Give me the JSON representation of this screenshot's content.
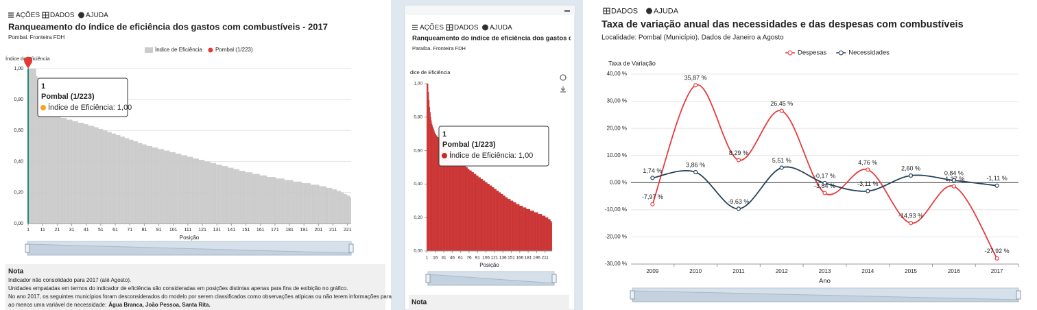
{
  "panels": [
    {
      "menu": [
        "AÇÕES",
        "DADOS",
        "AJUDA"
      ],
      "note": {
        "title": "Nota",
        "lines": [
          "Indicador não consolidado para 2017 (até Agosto).",
          "Unidades empatadas em termos do indicador de eficiência são consideradas em posições distintas apenas para fins de exibição no gráfico.",
          "No ano 2017, os seguintes municípios foram desconsiderados do modelo por serem classificados como observações atípicas ou não terem informações para",
          "ao menos uma variável de necessidade:"
        ],
        "bold": "Água Branca, João Pessoa, Santa Rita."
      }
    },
    {
      "menu": [
        "AÇÕES",
        "DADOS",
        "AJUDA"
      ],
      "note": {
        "title": "Nota"
      }
    },
    {
      "menu": [
        "DADOS",
        "AJUDA"
      ]
    }
  ],
  "chart_data": [
    {
      "type": "bar",
      "title": "Ranqueamento do índice de eficiência dos gastos com combustíveis - 2017",
      "subtitle": "Pombal. Fronteira FDH",
      "y_label": "Índice de Eficiência",
      "x_label": "Posição",
      "series": [
        {
          "name": "Índice de Eficiência",
          "color": "#cccccc",
          "values": [
            1.0,
            1.0,
            1.0,
            1.0,
            1.0,
            1.0,
            0.95,
            0.9,
            0.85,
            0.8,
            0.77,
            0.76,
            0.75,
            0.74,
            0.73,
            0.72,
            0.71,
            0.71,
            0.7,
            0.7,
            0.69,
            0.69,
            0.69,
            0.68,
            0.68,
            0.68,
            0.68,
            0.67,
            0.67,
            0.67,
            0.67,
            0.66,
            0.66,
            0.66,
            0.66,
            0.65,
            0.65,
            0.65,
            0.65,
            0.64,
            0.64,
            0.64,
            0.63,
            0.63,
            0.63,
            0.63,
            0.62,
            0.62,
            0.62,
            0.61,
            0.61,
            0.61,
            0.6,
            0.6,
            0.6,
            0.59,
            0.59,
            0.59,
            0.58,
            0.58,
            0.58,
            0.57,
            0.57,
            0.57,
            0.56,
            0.56,
            0.56,
            0.55,
            0.55,
            0.55,
            0.54,
            0.54,
            0.54,
            0.53,
            0.53,
            0.53,
            0.52,
            0.52,
            0.52,
            0.51,
            0.51,
            0.51,
            0.5,
            0.5,
            0.5,
            0.5,
            0.49,
            0.49,
            0.49,
            0.49,
            0.48,
            0.48,
            0.48,
            0.48,
            0.47,
            0.47,
            0.47,
            0.47,
            0.46,
            0.46,
            0.46,
            0.46,
            0.45,
            0.45,
            0.45,
            0.45,
            0.44,
            0.44,
            0.44,
            0.44,
            0.43,
            0.43,
            0.43,
            0.43,
            0.42,
            0.42,
            0.42,
            0.42,
            0.41,
            0.41,
            0.41,
            0.41,
            0.4,
            0.4,
            0.4,
            0.4,
            0.39,
            0.39,
            0.39,
            0.39,
            0.38,
            0.38,
            0.38,
            0.38,
            0.37,
            0.37,
            0.37,
            0.37,
            0.36,
            0.36,
            0.36,
            0.36,
            0.35,
            0.35,
            0.35,
            0.35,
            0.34,
            0.34,
            0.34,
            0.34,
            0.33,
            0.33,
            0.33,
            0.33,
            0.33,
            0.32,
            0.32,
            0.32,
            0.32,
            0.32,
            0.31,
            0.31,
            0.31,
            0.31,
            0.31,
            0.3,
            0.3,
            0.3,
            0.3,
            0.3,
            0.3,
            0.29,
            0.29,
            0.29,
            0.29,
            0.29,
            0.29,
            0.28,
            0.28,
            0.28,
            0.28,
            0.28,
            0.28,
            0.27,
            0.27,
            0.27,
            0.27,
            0.27,
            0.27,
            0.26,
            0.26,
            0.26,
            0.26,
            0.26,
            0.26,
            0.25,
            0.25,
            0.25,
            0.25,
            0.25,
            0.25,
            0.24,
            0.24,
            0.24,
            0.24,
            0.24,
            0.23,
            0.23,
            0.23,
            0.23,
            0.22,
            0.22,
            0.22,
            0.21,
            0.21,
            0.21,
            0.2,
            0.2,
            0.19,
            0.19,
            0.18,
            0.18,
            0.17
          ]
        }
      ],
      "highlight": {
        "name": "Pombal (1/223)",
        "color": "#e53935"
      },
      "tooltip": {
        "title": "1",
        "name": "Pombal (1/223)",
        "label": "Índice de Eficiência: 1,00",
        "color": "#f5a623"
      },
      "xlim": [
        0.5,
        223.5
      ],
      "xticks": [
        1,
        11,
        21,
        31,
        41,
        51,
        61,
        71,
        81,
        91,
        101,
        111,
        121,
        131,
        141,
        151,
        161,
        171,
        181,
        191,
        201,
        211,
        221
      ],
      "ylim": [
        0,
        1
      ],
      "yticks": [
        {
          "value": 0,
          "label": "0,00"
        },
        {
          "value": 0.2,
          "label": "0,20"
        },
        {
          "value": 0.4,
          "label": "0,40"
        },
        {
          "value": 0.6,
          "label": "0,60"
        },
        {
          "value": 0.8,
          "label": "0,80"
        },
        {
          "value": 1,
          "label": "1,00"
        }
      ],
      "grid": true
    },
    {
      "type": "bar",
      "title": "Ranqueamento do índice de eficiência dos gastos com co",
      "subtitle": "Paraíba. Fronteira FDH",
      "y_label": "dice de Eficiência",
      "x_label": "Posição",
      "series": [
        {
          "name": "Índice de Eficiência",
          "color": "#d32f2f",
          "values": [
            1.0,
            1.0,
            1.0,
            0.95,
            0.9,
            0.86,
            0.83,
            0.8,
            0.78,
            0.76,
            0.75,
            0.74,
            0.73,
            0.72,
            0.71,
            0.7,
            0.7,
            0.69,
            0.69,
            0.68,
            0.68,
            0.67,
            0.67,
            0.66,
            0.66,
            0.65,
            0.65,
            0.65,
            0.64,
            0.64,
            0.64,
            0.63,
            0.63,
            0.63,
            0.62,
            0.62,
            0.62,
            0.61,
            0.61,
            0.61,
            0.6,
            0.6,
            0.6,
            0.59,
            0.59,
            0.59,
            0.58,
            0.58,
            0.58,
            0.57,
            0.57,
            0.57,
            0.56,
            0.56,
            0.56,
            0.55,
            0.55,
            0.55,
            0.54,
            0.54,
            0.54,
            0.53,
            0.53,
            0.53,
            0.52,
            0.52,
            0.52,
            0.51,
            0.51,
            0.51,
            0.5,
            0.5,
            0.5,
            0.49,
            0.49,
            0.49,
            0.48,
            0.48,
            0.48,
            0.48,
            0.47,
            0.47,
            0.47,
            0.47,
            0.46,
            0.46,
            0.46,
            0.46,
            0.45,
            0.45,
            0.45,
            0.45,
            0.44,
            0.44,
            0.44,
            0.44,
            0.43,
            0.43,
            0.43,
            0.43,
            0.42,
            0.42,
            0.42,
            0.42,
            0.41,
            0.41,
            0.41,
            0.41,
            0.4,
            0.4,
            0.4,
            0.4,
            0.39,
            0.39,
            0.39,
            0.39,
            0.38,
            0.38,
            0.38,
            0.38,
            0.37,
            0.37,
            0.37,
            0.37,
            0.36,
            0.36,
            0.36,
            0.36,
            0.35,
            0.35,
            0.35,
            0.35,
            0.34,
            0.34,
            0.34,
            0.34,
            0.33,
            0.33,
            0.33,
            0.33,
            0.32,
            0.32,
            0.32,
            0.32,
            0.31,
            0.31,
            0.31,
            0.31,
            0.31,
            0.3,
            0.3,
            0.3,
            0.3,
            0.3,
            0.29,
            0.29,
            0.29,
            0.29,
            0.29,
            0.28,
            0.28,
            0.28,
            0.28,
            0.28,
            0.28,
            0.27,
            0.27,
            0.27,
            0.27,
            0.27,
            0.27,
            0.26,
            0.26,
            0.26,
            0.26,
            0.26,
            0.26,
            0.25,
            0.25,
            0.25,
            0.25,
            0.25,
            0.25,
            0.25,
            0.24,
            0.24,
            0.24,
            0.24,
            0.24,
            0.24,
            0.24,
            0.23,
            0.23,
            0.23,
            0.23,
            0.23,
            0.23,
            0.23,
            0.22,
            0.22,
            0.22,
            0.22,
            0.22,
            0.22,
            0.22,
            0.21,
            0.21,
            0.21,
            0.21,
            0.21,
            0.21,
            0.2,
            0.2,
            0.2,
            0.2,
            0.2,
            0.19,
            0.19,
            0.19,
            0.19,
            0.18,
            0.18,
            0.17
          ]
        }
      ],
      "tooltip": {
        "title": "1",
        "name": "Pombal (1/223)",
        "label": "Índice de Eficiência: 1,00",
        "color": "#c62828"
      },
      "xlim": [
        0.5,
        223.5
      ],
      "xticks": [
        1,
        16,
        31,
        46,
        61,
        76,
        91,
        106,
        121,
        136,
        151,
        166,
        181,
        196,
        211
      ],
      "ylim": [
        0,
        1
      ],
      "yticks": [
        {
          "value": 0,
          "label": "0,00"
        },
        {
          "value": 0.2,
          "label": "0,20"
        },
        {
          "value": 0.4,
          "label": "0,40"
        },
        {
          "value": 0.6,
          "label": "0,60"
        },
        {
          "value": 0.8,
          "label": "0,80"
        },
        {
          "value": 1,
          "label": "1,00"
        }
      ],
      "grid": false
    },
    {
      "type": "line",
      "title": "Taxa de variação anual das necessidades e das despesas com combustíveis",
      "subtitle": "Localidade: Pombal (Município). Dados de Janeiro a Agosto",
      "y_label": "Taxa de Variação",
      "x_label": "Ano",
      "categories": [
        "2009",
        "2010",
        "2011",
        "2012",
        "2013",
        "2014",
        "2015",
        "2016",
        "2017"
      ],
      "series": [
        {
          "name": "Despesas",
          "color": "#e8393a",
          "values": [
            -7.97,
            35.87,
            8.29,
            26.45,
            -3.84,
            4.76,
            -14.93,
            -1.37,
            -27.92
          ],
          "value_labels": [
            "-7,97 %",
            "35,87 %",
            "8,29 %",
            "26,45 %",
            "-3,84 %",
            "4,76 %",
            "-14,93 %",
            "-1,37 %",
            "-27,92 %"
          ]
        },
        {
          "name": "Necessidades",
          "color": "#22405a",
          "values": [
            1.74,
            3.86,
            -9.63,
            5.51,
            -0.17,
            -3.11,
            2.6,
            0.84,
            -1.11
          ],
          "value_labels": [
            "1,74 %",
            "3,86 %",
            "-9,63 %",
            "5,51 %",
            "-0,17 %",
            "-3,11 %",
            "2,60 %",
            "0,84 %",
            "-1,11 %"
          ]
        }
      ],
      "ylim": [
        -30,
        40
      ],
      "yticks": [
        {
          "value": -30,
          "label": "-30,00 %"
        },
        {
          "value": -20,
          "label": "-20,00 %"
        },
        {
          "value": -10,
          "label": "-10,00 %"
        },
        {
          "value": 0,
          "label": "0.00 %"
        },
        {
          "value": 10,
          "label": "10.00 %"
        },
        {
          "value": 20,
          "label": "20,00 %"
        },
        {
          "value": 30,
          "label": "30,00 %"
        },
        {
          "value": 40,
          "label": "40,00 %"
        }
      ],
      "grid": true
    }
  ]
}
